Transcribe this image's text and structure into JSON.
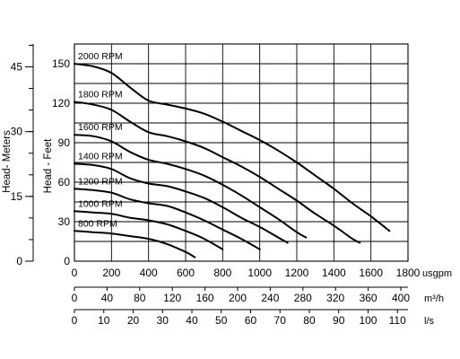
{
  "chart_data": {
    "type": "line",
    "x_axes": [
      {
        "unit": "usgpm",
        "ticks": [
          "0",
          "200",
          "400",
          "600",
          "800",
          "1000",
          "1200",
          "1400",
          "1600",
          "1800"
        ],
        "range": [
          0,
          1800
        ]
      },
      {
        "unit": "m³/h",
        "ticks": [
          "0",
          "40",
          "80",
          "120",
          "160",
          "200",
          "240",
          "280",
          "320",
          "360",
          "400"
        ],
        "range": [
          0,
          408.8
        ]
      },
      {
        "unit": "l/s",
        "ticks": [
          "0",
          "10",
          "20",
          "30",
          "40",
          "50",
          "60",
          "70",
          "80",
          "90",
          "100",
          "110"
        ],
        "range": [
          0,
          113.6
        ]
      }
    ],
    "y_axes": [
      {
        "label": "Head - Feet",
        "ticks": [
          "0",
          "30",
          "60",
          "90",
          "120",
          "150"
        ],
        "range": [
          0,
          165
        ]
      },
      {
        "label": "Head- Meters",
        "ticks": [
          "0",
          "15",
          "30",
          "45"
        ],
        "range": [
          0,
          50.3
        ]
      }
    ],
    "grid": true,
    "series": [
      {
        "name": "2000 RPM",
        "x": [
          0,
          100,
          200,
          300,
          400,
          500,
          600,
          700,
          800,
          900,
          1000,
          1100,
          1200,
          1300,
          1400,
          1500,
          1600,
          1700
        ],
        "y": [
          150,
          148,
          143,
          132,
          122,
          119,
          116,
          112,
          106,
          99,
          92,
          84,
          75,
          65,
          55,
          44,
          34,
          23
        ]
      },
      {
        "name": "1800 RPM",
        "x": [
          0,
          100,
          200,
          300,
          400,
          500,
          600,
          700,
          800,
          900,
          1000,
          1100,
          1200,
          1300,
          1400,
          1500,
          1540
        ],
        "y": [
          121,
          119,
          115,
          106,
          98,
          95,
          91,
          86,
          79,
          72,
          64,
          55,
          46,
          36,
          27,
          17,
          14
        ]
      },
      {
        "name": "1600 RPM",
        "x": [
          0,
          100,
          200,
          300,
          400,
          500,
          600,
          700,
          800,
          900,
          1000,
          1100,
          1200,
          1250
        ],
        "y": [
          96,
          95,
          91,
          83,
          77,
          74,
          70,
          65,
          58,
          50,
          41,
          32,
          22,
          18
        ]
      },
      {
        "name": "1400 RPM",
        "x": [
          0,
          100,
          200,
          300,
          400,
          500,
          600,
          700,
          800,
          900,
          1000,
          1100,
          1150
        ],
        "y": [
          74,
          73,
          70,
          63,
          59,
          57,
          53,
          48,
          41,
          33,
          26,
          18,
          14
        ]
      },
      {
        "name": "1200 RPM",
        "x": [
          0,
          100,
          200,
          300,
          400,
          500,
          600,
          700,
          800,
          900,
          1000
        ],
        "y": [
          55,
          54,
          52,
          47,
          44,
          42,
          37,
          31,
          24,
          17,
          9
        ]
      },
      {
        "name": "1000 RPM",
        "x": [
          0,
          100,
          200,
          300,
          400,
          500,
          600,
          700,
          800
        ],
        "y": [
          38,
          37,
          36,
          33,
          31,
          28,
          23,
          17,
          9
        ]
      },
      {
        "name": "800 RPM",
        "x": [
          0,
          100,
          200,
          300,
          400,
          500,
          600,
          650
        ],
        "y": [
          23,
          22,
          21,
          19,
          17,
          13,
          7,
          3
        ]
      }
    ]
  }
}
